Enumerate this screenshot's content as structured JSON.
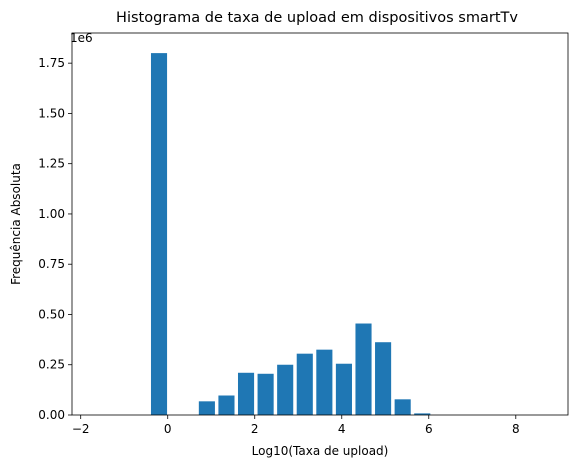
{
  "chart_data": {
    "type": "bar",
    "title": "Histograma de taxa de upload em dispositivos smartTv",
    "xlabel": "Log10(Taxa de upload)",
    "ylabel": "Frequência Absoluta",
    "y_offset_label": "1e6",
    "y_scale": 1000000,
    "xlim": [
      -2.2,
      9.2
    ],
    "ylim": [
      0,
      1900000
    ],
    "x_ticks": [
      -2,
      0,
      2,
      4,
      6,
      8
    ],
    "y_ticks": [
      0,
      250000,
      500000,
      750000,
      1000000,
      1250000,
      1500000,
      1750000
    ],
    "y_tick_labels": [
      "0.00",
      "0.25",
      "0.50",
      "0.75",
      "1.00",
      "1.25",
      "1.50",
      "1.75"
    ],
    "bar_width": 0.37,
    "color": "#1f77b4",
    "grid": false,
    "x": [
      -0.2,
      0.9,
      1.35,
      1.8,
      2.25,
      2.7,
      3.15,
      3.6,
      4.05,
      4.5,
      4.95,
      5.4,
      5.85,
      6.3,
      6.75,
      7.2,
      7.65,
      8.1,
      8.55
    ],
    "values": [
      1800000,
      68000,
      97000,
      210000,
      205000,
      250000,
      305000,
      325000,
      255000,
      455000,
      362000,
      78000,
      8000,
      0,
      0,
      0,
      0,
      0,
      0
    ]
  }
}
